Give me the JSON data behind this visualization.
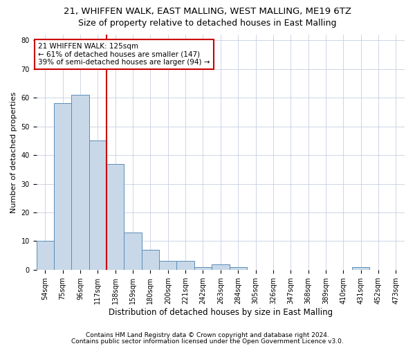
{
  "title1": "21, WHIFFEN WALK, EAST MALLING, WEST MALLING, ME19 6TZ",
  "title2": "Size of property relative to detached houses in East Malling",
  "xlabel": "Distribution of detached houses by size in East Malling",
  "ylabel": "Number of detached properties",
  "categories": [
    "54sqm",
    "75sqm",
    "96sqm",
    "117sqm",
    "138sqm",
    "159sqm",
    "180sqm",
    "200sqm",
    "221sqm",
    "242sqm",
    "263sqm",
    "284sqm",
    "305sqm",
    "326sqm",
    "347sqm",
    "368sqm",
    "389sqm",
    "410sqm",
    "431sqm",
    "452sqm",
    "473sqm"
  ],
  "values": [
    10,
    58,
    61,
    45,
    37,
    13,
    7,
    3,
    3,
    1,
    2,
    1,
    0,
    0,
    0,
    0,
    0,
    0,
    1,
    0,
    0
  ],
  "bar_color": "#c8d8e8",
  "bar_edge_color": "#5b8db8",
  "bar_width": 1.0,
  "ylim": [
    0,
    82
  ],
  "yticks": [
    0,
    10,
    20,
    30,
    40,
    50,
    60,
    70,
    80
  ],
  "vline_color": "#cc0000",
  "annotation_text": "21 WHIFFEN WALK: 125sqm\n← 61% of detached houses are smaller (147)\n39% of semi-detached houses are larger (94) →",
  "annotation_bbox_color": "#cc0000",
  "footer1": "Contains HM Land Registry data © Crown copyright and database right 2024.",
  "footer2": "Contains public sector information licensed under the Open Government Licence v3.0.",
  "bg_color": "#ffffff",
  "grid_color": "#c5cfe0",
  "title1_fontsize": 9.5,
  "title2_fontsize": 9,
  "xlabel_fontsize": 8.5,
  "ylabel_fontsize": 8,
  "tick_fontsize": 7,
  "annotation_fontsize": 7.5,
  "footer_fontsize": 6.5
}
